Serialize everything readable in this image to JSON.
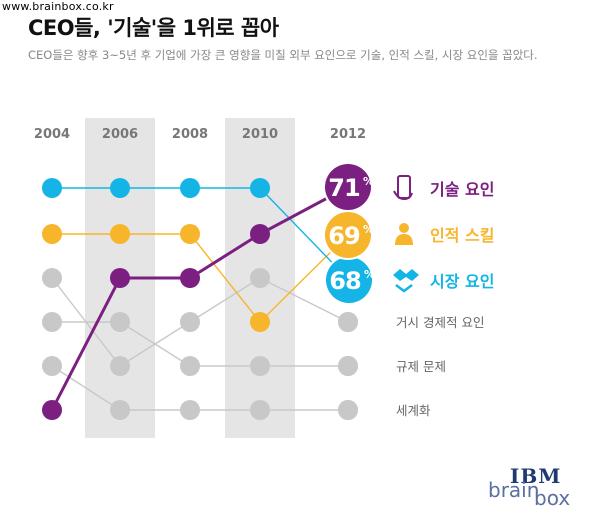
{
  "site_url": "www.brainbox.co.kr",
  "title": "CEO들, '기술'을 1위로 꼽아",
  "subtitle": "CEO들은 향후 3~5년 후 기업에 가장 큰 영향을 미칠 외부 요인으로 기술, 인적 스킬, 시장 요인을 꼽았다.",
  "logo": {
    "top": "IBM",
    "brand_left": "brain",
    "brand_right": "box"
  },
  "chart_data": {
    "type": "line",
    "subtype": "bump",
    "x": [
      "2004",
      "2006",
      "2008",
      "2010",
      "2012"
    ],
    "rank_range": [
      1,
      6
    ],
    "shaded_years": [
      "2006",
      "2010"
    ],
    "series": [
      {
        "name": "기술 요인",
        "color": "#7b1f80",
        "ranks": [
          6,
          3,
          3,
          2,
          1
        ],
        "end_label": "71%",
        "icon": "phone-hand-icon",
        "highlight": true
      },
      {
        "name": "인적 스킬",
        "color": "#f7b52c",
        "ranks": [
          2,
          2,
          2,
          4,
          2
        ],
        "end_label": "69%",
        "icon": "person-icon",
        "highlight": true
      },
      {
        "name": "시장 요인",
        "color": "#14b5e6",
        "ranks": [
          1,
          1,
          1,
          1,
          3
        ],
        "end_label": "68%",
        "icon": "handshake-icon",
        "highlight": true
      },
      {
        "name": "거시 경제적 요인",
        "color": "#c8c8c8",
        "ranks": [
          3,
          5,
          4,
          3,
          4
        ],
        "highlight": false
      },
      {
        "name": "규제 문제",
        "color": "#c8c8c8",
        "ranks": [
          4,
          4,
          5,
          5,
          5
        ],
        "highlight": false
      },
      {
        "name": "세계화",
        "color": "#c8c8c8",
        "ranks": [
          5,
          6,
          6,
          6,
          6
        ],
        "highlight": false
      }
    ],
    "legend_placement": "right"
  }
}
